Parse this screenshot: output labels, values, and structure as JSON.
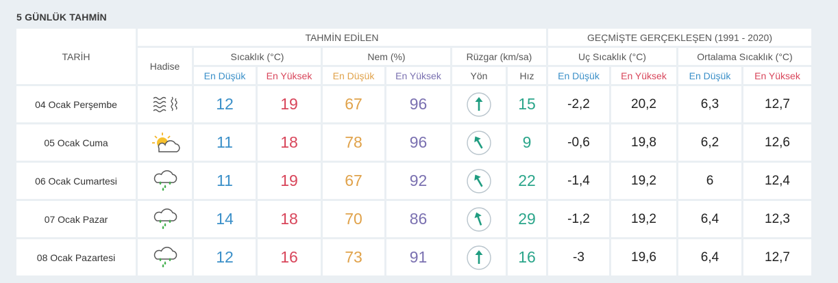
{
  "title": "5 GÜNLÜK TAHMİN",
  "header": {
    "forecast": "TAHMİN EDİLEN",
    "past": "GEÇMİŞTE GERÇEKLEŞEN (1991 - 2020)",
    "date": "TARİH",
    "event": "Hadise",
    "temp": "Sıcaklık (°C)",
    "humidity": "Nem (%)",
    "wind": "Rüzgar (km/sa)",
    "extreme_temp": "Uç Sıcaklık (°C)",
    "avg_temp": "Ortalama Sıcaklık (°C)",
    "min": "En Düşük",
    "max": "En Yüksek",
    "direction": "Yön",
    "speed": "Hız"
  },
  "colors": {
    "min": "#3a8fc8",
    "max": "#d8455a",
    "hum_min": "#e0a24a",
    "hum_max": "#7a70b0",
    "wind": "#2aa58a"
  },
  "days": [
    {
      "date": "04 Ocak Perşembe",
      "icon": "fog-icon",
      "temp_min": "12",
      "temp_max": "19",
      "hum_min": "67",
      "hum_max": "96",
      "wind_dir_deg": 0,
      "wind_speed": "15",
      "ext_min": "-2,2",
      "ext_max": "20,2",
      "avg_min": "6,3",
      "avg_max": "12,7"
    },
    {
      "date": "05 Ocak Cuma",
      "icon": "partly-cloudy-icon",
      "temp_min": "11",
      "temp_max": "18",
      "hum_min": "78",
      "hum_max": "96",
      "wind_dir_deg": -30,
      "wind_speed": "9",
      "ext_min": "-0,6",
      "ext_max": "19,8",
      "avg_min": "6,2",
      "avg_max": "12,6"
    },
    {
      "date": "06 Ocak Cumartesi",
      "icon": "rain-icon",
      "temp_min": "11",
      "temp_max": "19",
      "hum_min": "67",
      "hum_max": "92",
      "wind_dir_deg": -30,
      "wind_speed": "22",
      "ext_min": "-1,4",
      "ext_max": "19,2",
      "avg_min": "6",
      "avg_max": "12,4"
    },
    {
      "date": "07 Ocak Pazar",
      "icon": "rain-icon",
      "temp_min": "14",
      "temp_max": "18",
      "hum_min": "70",
      "hum_max": "86",
      "wind_dir_deg": -20,
      "wind_speed": "29",
      "ext_min": "-1,2",
      "ext_max": "19,2",
      "avg_min": "6,4",
      "avg_max": "12,3"
    },
    {
      "date": "08 Ocak Pazartesi",
      "icon": "rain-icon",
      "temp_min": "12",
      "temp_max": "16",
      "hum_min": "73",
      "hum_max": "91",
      "wind_dir_deg": 0,
      "wind_speed": "16",
      "ext_min": "-3",
      "ext_max": "19,6",
      "avg_min": "6,4",
      "avg_max": "12,7"
    }
  ]
}
